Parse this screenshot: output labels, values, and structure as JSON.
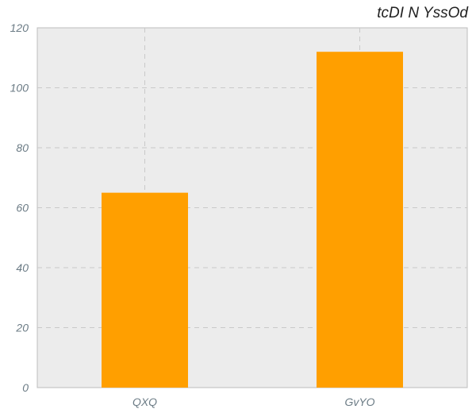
{
  "chart_data": {
    "type": "bar",
    "title": "tcDI N YssOd",
    "categories": [
      "QXQ",
      "GvYO"
    ],
    "values": [
      65,
      112
    ],
    "ylim": [
      0,
      120
    ],
    "yticks": [
      0,
      20,
      40,
      60,
      80,
      100,
      120
    ],
    "grid": true,
    "bar_color": "#ff9f00",
    "plot_bg": "#ececec",
    "grid_color": "#c9c9c9"
  }
}
